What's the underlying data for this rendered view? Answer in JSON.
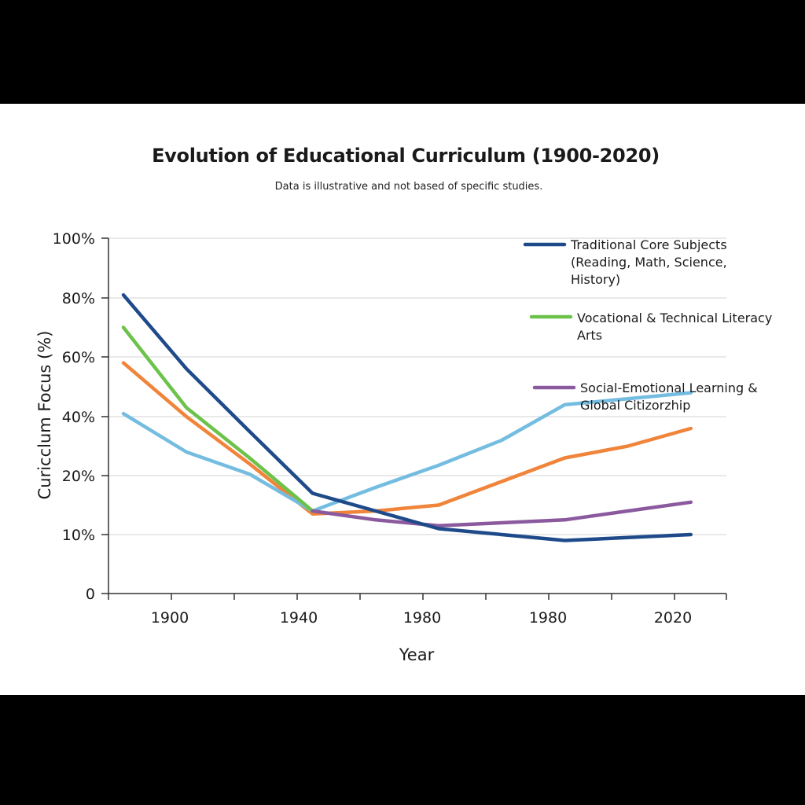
{
  "chart_data": {
    "type": "line",
    "title": "Evolution of Educational Curriculum (1900-2020)",
    "subtitle": "Data is illustrative and not based of specific studies.",
    "xlabel": "Year",
    "ylabel": "Curicclum Focus (%)",
    "x_tick_labels": [
      "1900",
      "1940",
      "1980",
      "1980",
      "2020"
    ],
    "y_tick_labels": [
      "0",
      "10%",
      "20%",
      "40%",
      "60%",
      "80%",
      "100%"
    ],
    "grid": true,
    "legend_position": "top-right",
    "series": [
      {
        "name": "Traditional Core Subjects (Reading, Math, Science, History)",
        "legend_lines": [
          "Traditional Core Subjects",
          "(Reading, Math, Science,",
          "History)"
        ],
        "color": "#1f4a8a",
        "x": [
          1880,
          1900,
          1920,
          1940,
          1960,
          1980,
          2000,
          2020,
          2040,
          2060
        ],
        "y": [
          81,
          56,
          35,
          17,
          14,
          11,
          10,
          9,
          9.5,
          10
        ]
      },
      {
        "name": "Vocational & Technical Literacy Arts",
        "legend_lines": [
          "Vocational & Technical Literacy",
          "Arts"
        ],
        "color": "#6cc24a",
        "x": [
          1880,
          1900,
          1920,
          1940
        ],
        "y": [
          70,
          43,
          26,
          14
        ]
      },
      {
        "name": "",
        "legend_lines": [],
        "color": "#f0843a",
        "x": [
          1880,
          1900,
          1920,
          1940,
          1960,
          1980,
          2000,
          2020,
          2040,
          2060
        ],
        "y": [
          58,
          40,
          24,
          13.5,
          14,
          15,
          19,
          26,
          30,
          36
        ]
      },
      {
        "name": "",
        "legend_lines": [],
        "color": "#74bde0",
        "x": [
          1880,
          1900,
          1920,
          1940,
          1960,
          1980,
          2000,
          2020,
          2040,
          2060
        ],
        "y": [
          41,
          28,
          20.5,
          14,
          18,
          23.5,
          32,
          44,
          46,
          48
        ]
      },
      {
        "name": "Social-Emotional Learning & Global Citizorzhip",
        "legend_lines": [
          "Social-Emotional Learning &",
          "Global Citizorzhip"
        ],
        "color": "#8b5a9e",
        "x": [
          1940,
          1960,
          1980,
          2000,
          2020,
          2040,
          2060
        ],
        "y": [
          14,
          12.5,
          11.5,
          12,
          12.5,
          14,
          15.5
        ]
      }
    ]
  }
}
